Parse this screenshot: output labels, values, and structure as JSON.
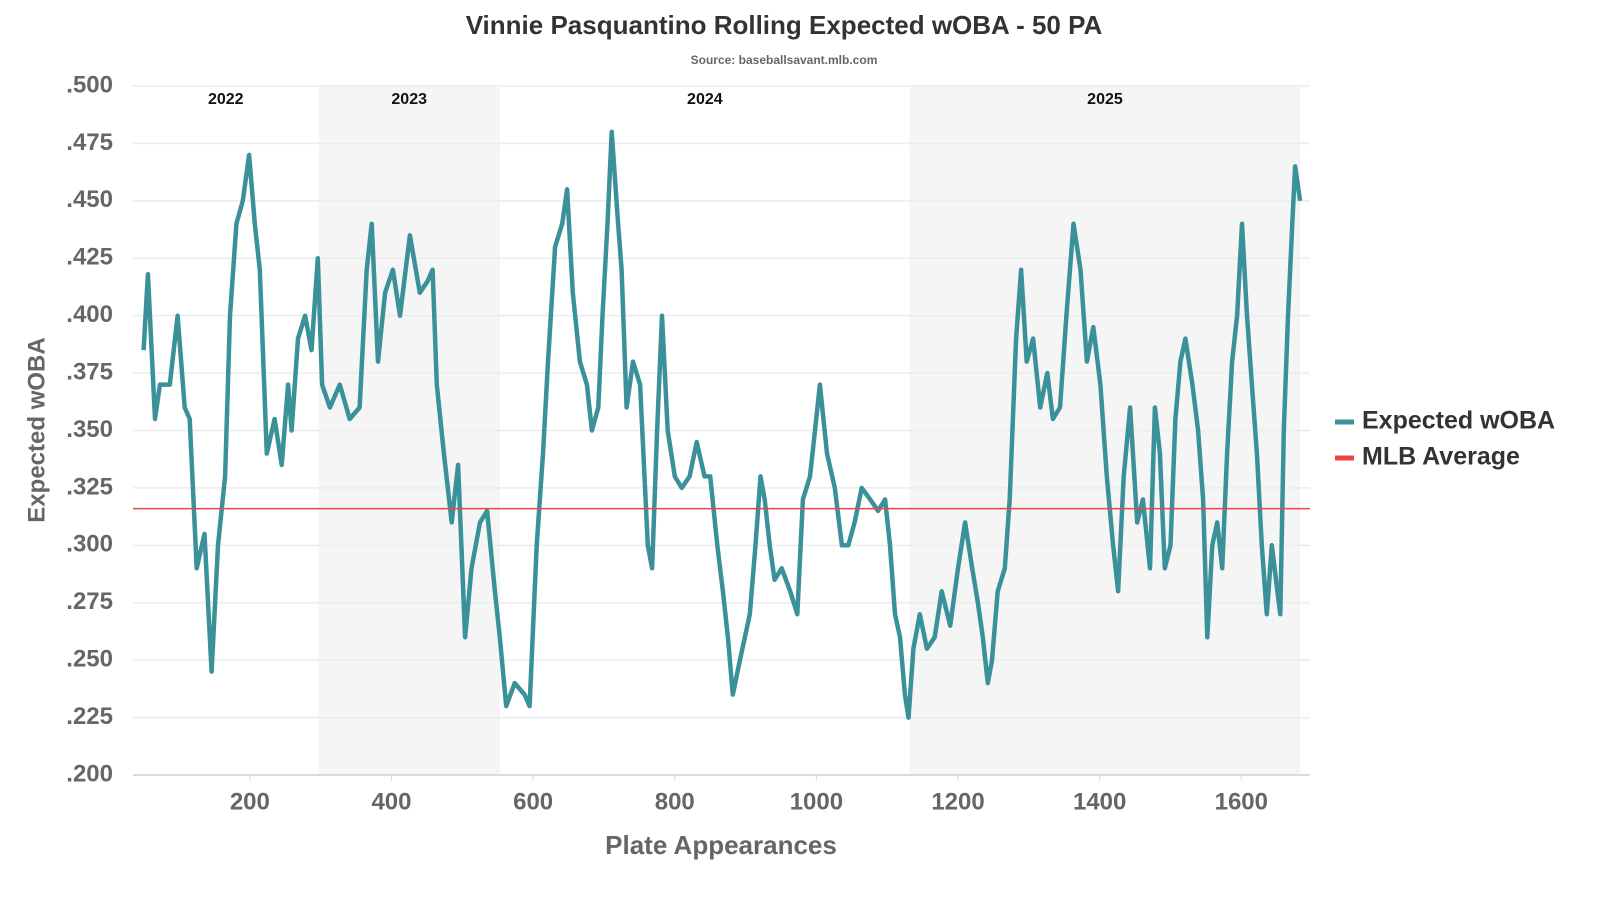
{
  "chart_data": {
    "type": "line",
    "title": "Vinnie Pasquantino Rolling Expected wOBA - 50 PA",
    "subtitle": "Source: baseballsavant.mlb.com",
    "x_label": "Plate Appearances",
    "y_label": "Expected wOBA",
    "x": [
      50,
      56,
      66,
      73,
      87,
      98,
      108,
      115,
      125,
      136,
      146,
      155,
      165,
      172,
      181,
      190,
      199,
      207,
      214,
      224,
      235,
      245,
      254,
      259,
      268,
      278,
      287,
      296,
      302,
      313,
      327,
      341,
      355,
      365,
      372,
      381,
      391,
      402,
      412,
      426,
      440,
      451,
      458,
      464,
      474,
      485,
      494,
      504,
      513,
      525,
      535,
      546,
      553,
      562,
      574,
      588,
      595,
      605,
      614,
      621,
      631,
      641,
      648,
      656,
      666,
      676,
      683,
      692,
      698,
      705,
      711,
      720,
      725,
      732,
      741,
      751,
      762,
      768,
      775,
      782,
      790,
      800,
      810,
      821,
      831,
      842,
      850,
      860,
      868,
      875,
      882,
      892,
      899,
      906,
      914,
      921,
      927,
      934,
      941,
      951,
      963,
      973,
      981,
      991,
      998,
      1005,
      1015,
      1026,
      1036,
      1045,
      1054,
      1064,
      1076,
      1087,
      1097,
      1104,
      1111,
      1118,
      1125,
      1130,
      1137,
      1146,
      1156,
      1167,
      1177,
      1189,
      1200,
      1210,
      1220,
      1228,
      1235,
      1242,
      1248,
      1256,
      1266,
      1273,
      1282,
      1289,
      1297,
      1306,
      1316,
      1326,
      1334,
      1344,
      1353,
      1363,
      1373,
      1382,
      1391,
      1401,
      1410,
      1419,
      1426,
      1434,
      1443,
      1453,
      1461,
      1471,
      1478,
      1485,
      1492,
      1500,
      1507,
      1514,
      1521,
      1531,
      1539,
      1546,
      1552,
      1559,
      1566,
      1573,
      1580,
      1587,
      1594,
      1601,
      1608,
      1615,
      1622,
      1629,
      1636,
      1643,
      1651,
      1655,
      1660,
      1666,
      1672,
      1676,
      1683
    ],
    "series": [
      {
        "name": "Expected wOBA",
        "color": "#3a9199",
        "values": [
          0.385,
          0.418,
          0.355,
          0.37,
          0.37,
          0.4,
          0.36,
          0.355,
          0.29,
          0.305,
          0.245,
          0.3,
          0.33,
          0.4,
          0.44,
          0.45,
          0.47,
          0.44,
          0.42,
          0.34,
          0.355,
          0.335,
          0.37,
          0.35,
          0.39,
          0.4,
          0.385,
          0.425,
          0.37,
          0.36,
          0.37,
          0.355,
          0.36,
          0.42,
          0.44,
          0.38,
          0.41,
          0.42,
          0.4,
          0.435,
          0.41,
          0.415,
          0.42,
          0.37,
          0.34,
          0.31,
          0.335,
          0.26,
          0.29,
          0.31,
          0.315,
          0.28,
          0.26,
          0.23,
          0.24,
          0.235,
          0.23,
          0.3,
          0.34,
          0.38,
          0.43,
          0.44,
          0.455,
          0.41,
          0.38,
          0.37,
          0.35,
          0.36,
          0.4,
          0.44,
          0.48,
          0.44,
          0.42,
          0.36,
          0.38,
          0.37,
          0.3,
          0.29,
          0.35,
          0.4,
          0.35,
          0.33,
          0.325,
          0.33,
          0.345,
          0.33,
          0.33,
          0.3,
          0.28,
          0.26,
          0.235,
          0.25,
          0.26,
          0.27,
          0.3,
          0.33,
          0.32,
          0.3,
          0.285,
          0.29,
          0.28,
          0.27,
          0.32,
          0.33,
          0.35,
          0.37,
          0.34,
          0.325,
          0.3,
          0.3,
          0.31,
          0.325,
          0.32,
          0.315,
          0.32,
          0.3,
          0.27,
          0.26,
          0.235,
          0.225,
          0.255,
          0.27,
          0.255,
          0.26,
          0.28,
          0.265,
          0.29,
          0.31,
          0.29,
          0.275,
          0.26,
          0.24,
          0.25,
          0.28,
          0.29,
          0.32,
          0.39,
          0.42,
          0.38,
          0.39,
          0.36,
          0.375,
          0.355,
          0.36,
          0.4,
          0.44,
          0.42,
          0.38,
          0.395,
          0.37,
          0.33,
          0.3,
          0.28,
          0.33,
          0.36,
          0.31,
          0.32,
          0.29,
          0.36,
          0.34,
          0.29,
          0.3,
          0.355,
          0.38,
          0.39,
          0.37,
          0.35,
          0.32,
          0.26,
          0.3,
          0.31,
          0.29,
          0.34,
          0.38,
          0.4,
          0.44,
          0.4,
          0.37,
          0.34,
          0.3,
          0.27,
          0.3,
          0.28,
          0.27,
          0.35,
          0.4,
          0.44,
          0.465,
          0.45
        ]
      }
    ],
    "reference_line": {
      "name": "MLB Average",
      "value": 0.316,
      "color": "#ef4444"
    },
    "seasons": [
      {
        "label": "2022",
        "start": 35,
        "end": 297
      },
      {
        "label": "2023",
        "start": 297,
        "end": 553
      },
      {
        "label": "2024",
        "start": 553,
        "end": 1132
      },
      {
        "label": "2025",
        "start": 1132,
        "end": 1683
      }
    ],
    "xlim": [
      35,
      1697
    ],
    "xticks": [
      200,
      400,
      600,
      800,
      1000,
      1200,
      1400,
      1600
    ],
    "ylim": [
      0.2,
      0.5
    ],
    "yticks": [
      {
        "value": 0.2,
        "label": ".200"
      },
      {
        "value": 0.225,
        "label": ".225"
      },
      {
        "value": 0.25,
        "label": ".250"
      },
      {
        "value": 0.275,
        "label": ".275"
      },
      {
        "value": 0.3,
        "label": ".300"
      },
      {
        "value": 0.325,
        "label": ".325"
      },
      {
        "value": 0.35,
        "label": ".350"
      },
      {
        "value": 0.375,
        "label": ".375"
      },
      {
        "value": 0.4,
        "label": ".400"
      },
      {
        "value": 0.425,
        "label": ".425"
      },
      {
        "value": 0.45,
        "label": ".450"
      },
      {
        "value": 0.475,
        "label": ".475"
      },
      {
        "value": 0.5,
        "label": ".500"
      }
    ],
    "grid": true,
    "legend": "right"
  }
}
